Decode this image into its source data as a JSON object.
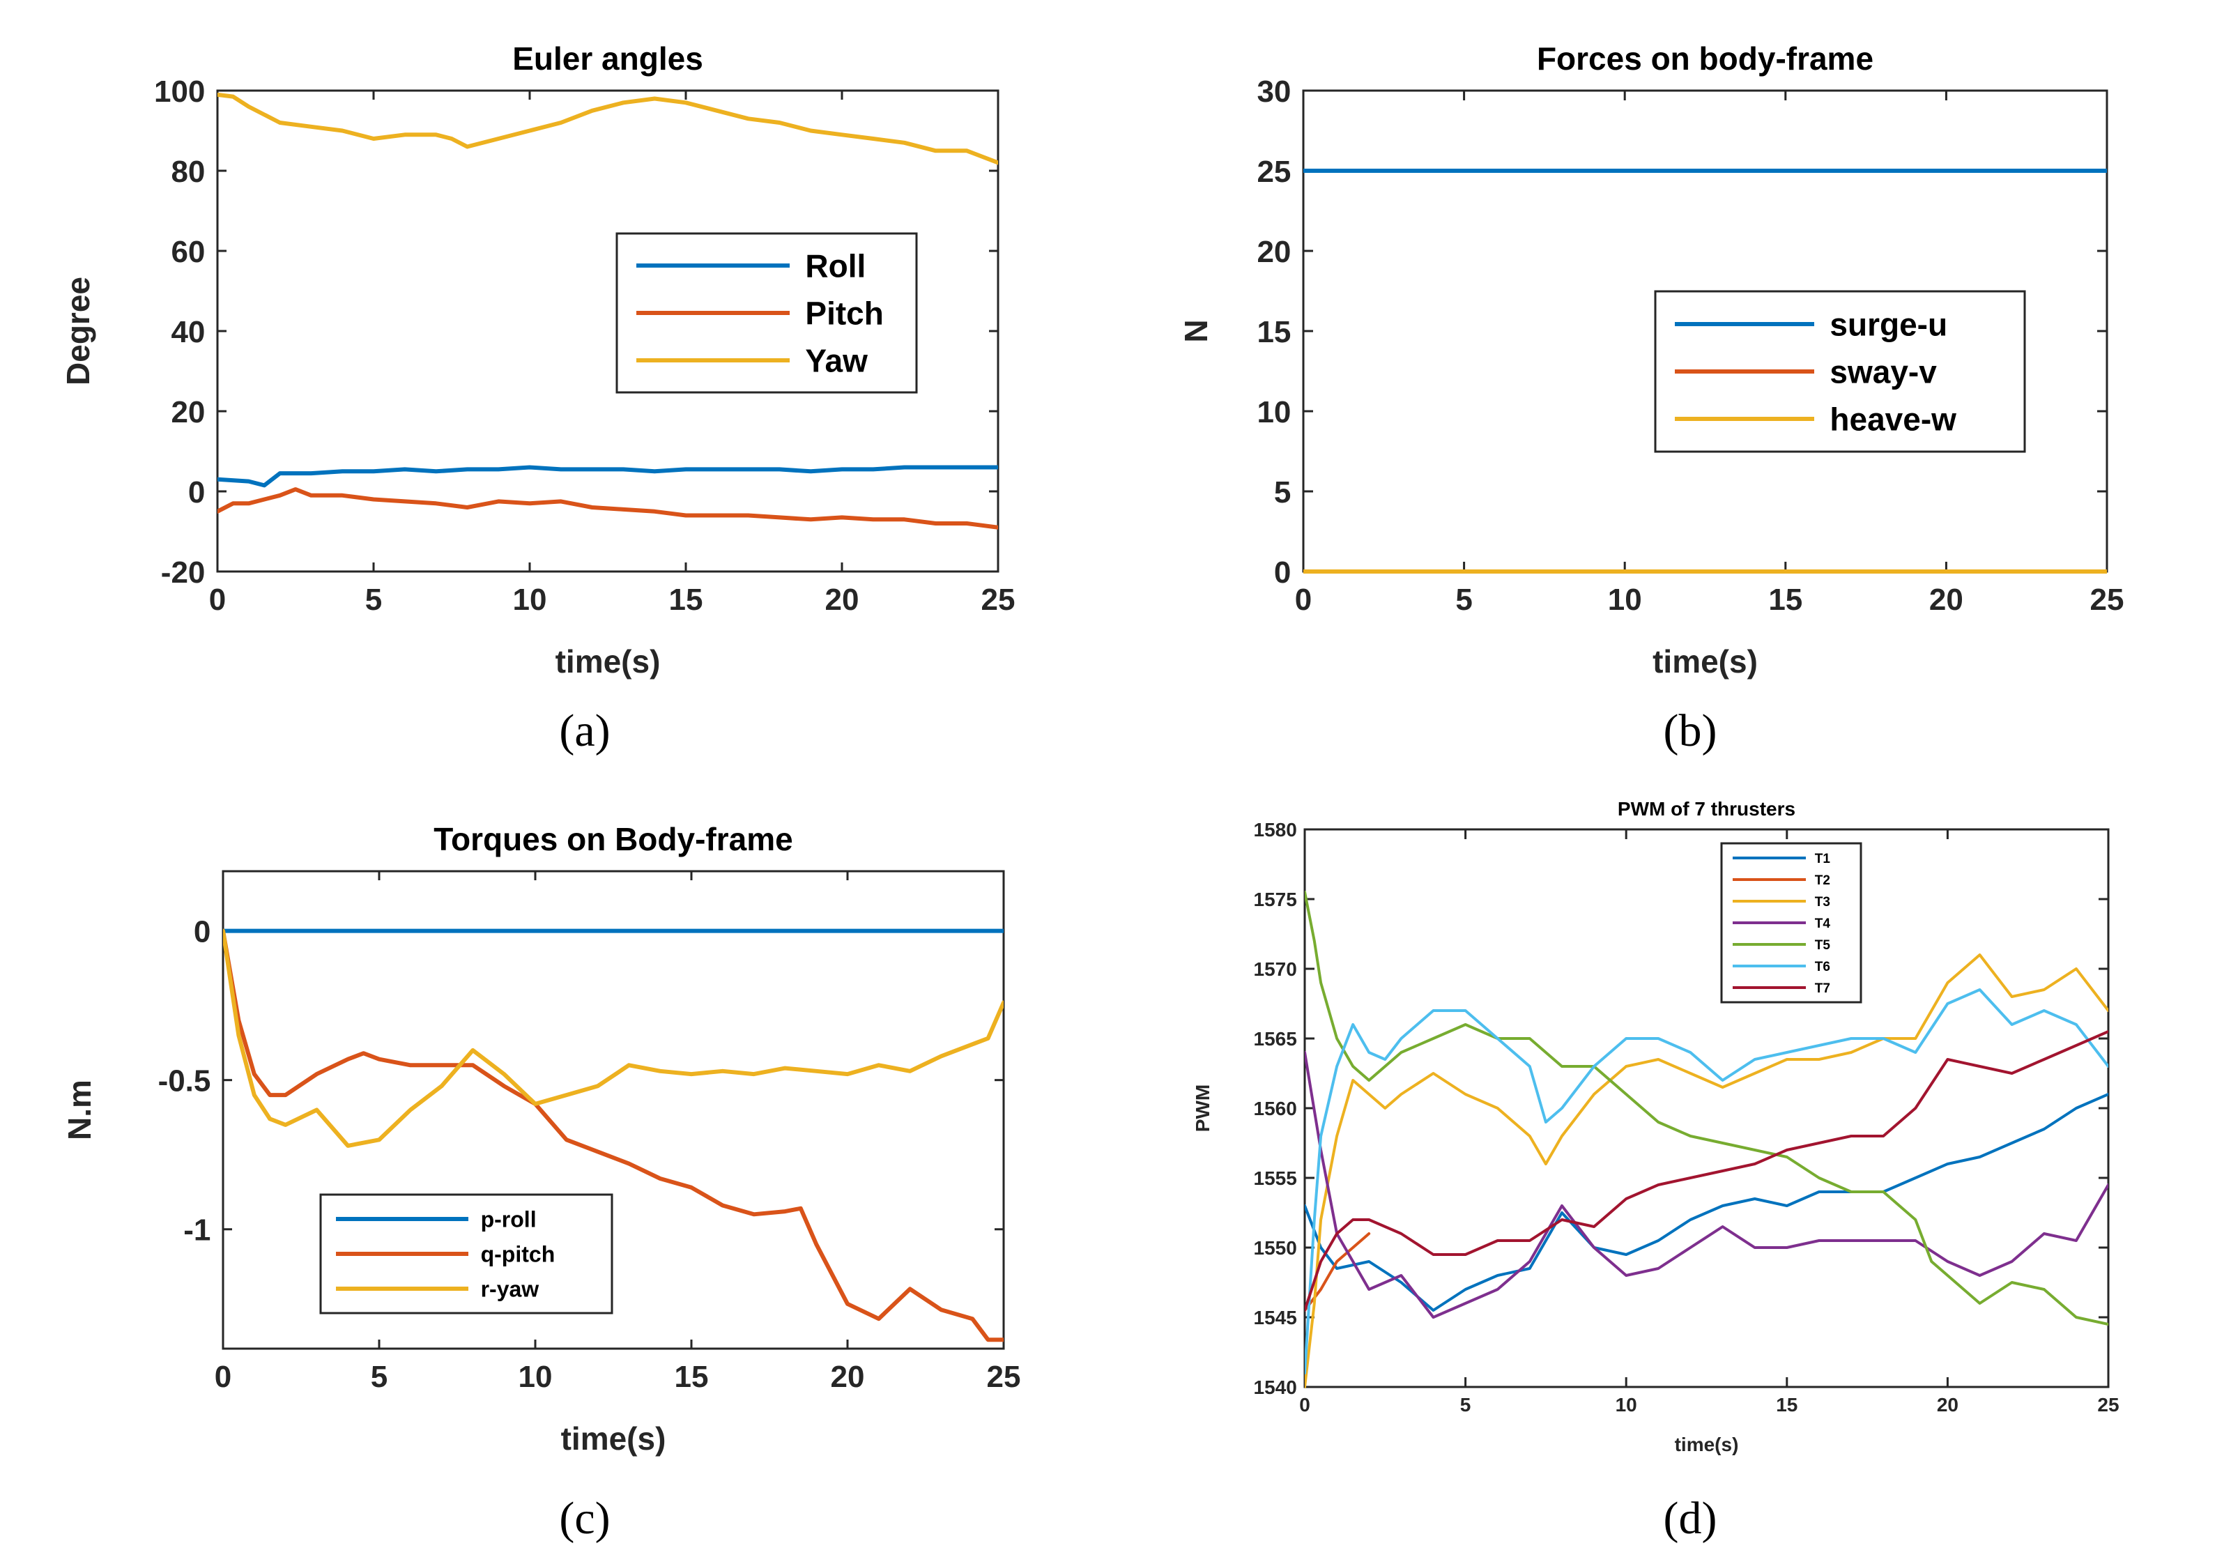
{
  "figure": {
    "captions": [
      "(a)",
      "(b)",
      "(c)",
      "(d)"
    ]
  },
  "chart_data": [
    {
      "id": "a",
      "type": "line",
      "title": "Euler angles",
      "xlabel": "time(s)",
      "ylabel": "Degree",
      "xlim": [
        0,
        25
      ],
      "ylim": [
        -20,
        100
      ],
      "xticks": [
        0,
        5,
        10,
        15,
        20,
        25
      ],
      "xtick_labels": [
        "0",
        "5",
        "10",
        "15",
        "20",
        "25"
      ],
      "yticks": [
        -20,
        0,
        20,
        40,
        60,
        80,
        100
      ],
      "ytick_labels": [
        "-20",
        "0",
        "20",
        "40",
        "60",
        "80",
        "100"
      ],
      "legend_position": "right-middle",
      "series": [
        {
          "name": "Roll",
          "color": "#0072BD",
          "x": [
            0,
            1,
            1.5,
            2,
            3,
            4,
            5,
            6,
            7,
            8,
            9,
            10,
            11,
            12,
            13,
            14,
            15,
            16,
            17,
            18,
            19,
            20,
            21,
            22,
            23,
            24,
            25
          ],
          "y": [
            3,
            2.5,
            1.5,
            4.5,
            4.5,
            5,
            5,
            5.5,
            5,
            5.5,
            5.5,
            6,
            5.5,
            5.5,
            5.5,
            5,
            5.5,
            5.5,
            5.5,
            5.5,
            5,
            5.5,
            5.5,
            6,
            6,
            6,
            6
          ]
        },
        {
          "name": "Pitch",
          "color": "#D95319",
          "x": [
            0,
            0.5,
            1,
            2,
            2.5,
            3,
            4,
            5,
            6,
            7,
            8,
            9,
            10,
            11,
            12,
            13,
            14,
            15,
            16,
            17,
            18,
            19,
            20,
            21,
            22,
            23,
            24,
            25
          ],
          "y": [
            -5,
            -3,
            -3,
            -1,
            0.5,
            -1,
            -1,
            -2,
            -2.5,
            -3,
            -4,
            -2.5,
            -3,
            -2.5,
            -4,
            -4.5,
            -5,
            -6,
            -6,
            -6,
            -6.5,
            -7,
            -6.5,
            -7,
            -7,
            -8,
            -8,
            -9
          ]
        },
        {
          "name": "Yaw",
          "color": "#EDB120",
          "x": [
            0,
            0.5,
            1,
            2,
            3,
            4,
            5,
            6,
            7,
            7.5,
            8,
            9,
            10,
            11,
            12,
            13,
            14,
            15,
            16,
            17,
            18,
            19,
            20,
            21,
            22,
            23,
            24,
            25
          ],
          "y": [
            99,
            98.5,
            96,
            92,
            91,
            90,
            88,
            89,
            89,
            88,
            86,
            88,
            90,
            92,
            95,
            97,
            98,
            97,
            95,
            93,
            92,
            90,
            89,
            88,
            87,
            85,
            85,
            82
          ]
        }
      ]
    },
    {
      "id": "b",
      "type": "line",
      "title": "Forces on body-frame",
      "xlabel": "time(s)",
      "ylabel": "N",
      "xlim": [
        0,
        25
      ],
      "ylim": [
        0,
        30
      ],
      "xticks": [
        0,
        5,
        10,
        15,
        20,
        25
      ],
      "xtick_labels": [
        "0",
        "5",
        "10",
        "15",
        "20",
        "25"
      ],
      "yticks": [
        0,
        5,
        10,
        15,
        20,
        25,
        30
      ],
      "ytick_labels": [
        "0",
        "5",
        "10",
        "15",
        "20",
        "25",
        "30"
      ],
      "legend_position": "right-middle",
      "series": [
        {
          "name": "surge-u",
          "color": "#0072BD",
          "x": [
            0,
            25
          ],
          "y": [
            25,
            25
          ]
        },
        {
          "name": "sway-v",
          "color": "#D95319",
          "x": [
            0,
            25
          ],
          "y": [
            0,
            0
          ]
        },
        {
          "name": "heave-w",
          "color": "#EDB120",
          "x": [
            0,
            25
          ],
          "y": [
            0,
            0
          ]
        }
      ]
    },
    {
      "id": "c",
      "type": "line",
      "title": "Torques on Body-frame",
      "xlabel": "time(s)",
      "ylabel": "N.m",
      "xlim": [
        0,
        25
      ],
      "ylim": [
        -1.4,
        0.2
      ],
      "xticks": [
        0,
        5,
        10,
        15,
        20,
        25
      ],
      "xtick_labels": [
        "0",
        "5",
        "10",
        "15",
        "20",
        "25"
      ],
      "yticks": [
        -1,
        -0.5,
        0
      ],
      "ytick_labels": [
        "-1",
        "-0.5",
        "0"
      ],
      "legend_position": "bottom-left",
      "series": [
        {
          "name": "p-roll",
          "color": "#0072BD",
          "x": [
            0,
            25
          ],
          "y": [
            0,
            0
          ]
        },
        {
          "name": "q-pitch",
          "color": "#D95319",
          "x": [
            0,
            0.5,
            1,
            1.5,
            2,
            3,
            4,
            4.5,
            5,
            6,
            7,
            8,
            9,
            10,
            11,
            12,
            13,
            14,
            15,
            16,
            17,
            18,
            18.5,
            19,
            20,
            21,
            22,
            23,
            24,
            24.5,
            25
          ],
          "y": [
            0,
            -0.3,
            -0.48,
            -0.55,
            -0.55,
            -0.48,
            -0.43,
            -0.41,
            -0.43,
            -0.45,
            -0.45,
            -0.45,
            -0.52,
            -0.58,
            -0.7,
            -0.74,
            -0.78,
            -0.83,
            -0.86,
            -0.92,
            -0.95,
            -0.94,
            -0.93,
            -1.05,
            -1.25,
            -1.3,
            -1.2,
            -1.27,
            -1.3,
            -1.37,
            -1.37
          ]
        },
        {
          "name": "r-yaw",
          "color": "#EDB120",
          "x": [
            0,
            0.5,
            1,
            1.5,
            2,
            3,
            4,
            5,
            6,
            7,
            8,
            9,
            10,
            11,
            12,
            13,
            14,
            15,
            16,
            17,
            18,
            19,
            20,
            21,
            22,
            23,
            24,
            24.5,
            25
          ],
          "y": [
            0,
            -0.35,
            -0.55,
            -0.63,
            -0.65,
            -0.6,
            -0.72,
            -0.7,
            -0.6,
            -0.52,
            -0.4,
            -0.48,
            -0.58,
            -0.55,
            -0.52,
            -0.45,
            -0.47,
            -0.48,
            -0.47,
            -0.48,
            -0.46,
            -0.47,
            -0.48,
            -0.45,
            -0.47,
            -0.42,
            -0.38,
            -0.36,
            -0.24
          ]
        }
      ]
    },
    {
      "id": "d",
      "type": "line",
      "title": "PWM of 7 thrusters",
      "xlabel": "time(s)",
      "ylabel": "PWM",
      "xlim": [
        0,
        25
      ],
      "ylim": [
        1540,
        1580
      ],
      "xticks": [
        0,
        5,
        10,
        15,
        20,
        25
      ],
      "xtick_labels": [
        "0",
        "5",
        "10",
        "15",
        "20",
        "25"
      ],
      "yticks": [
        1540,
        1545,
        1550,
        1555,
        1560,
        1565,
        1570,
        1575,
        1580
      ],
      "ytick_labels": [
        "1540",
        "1545",
        "1550",
        "1555",
        "1560",
        "1565",
        "1570",
        "1575",
        "1580"
      ],
      "legend_position": "top-center",
      "series": [
        {
          "name": "T1",
          "color": "#0072BD",
          "x": [
            0,
            0.5,
            1,
            2,
            3,
            4,
            5,
            6,
            7,
            8,
            9,
            10,
            11,
            12,
            13,
            14,
            15,
            16,
            17,
            18,
            19,
            20,
            21,
            22,
            23,
            24,
            25
          ],
          "y": [
            1553,
            1550,
            1548.5,
            1549,
            1547.5,
            1545.5,
            1547,
            1548,
            1548.5,
            1552.5,
            1550,
            1549.5,
            1550.5,
            1552,
            1553,
            1553.5,
            1553,
            1554,
            1554,
            1554,
            1555,
            1556,
            1556.5,
            1557.5,
            1558.5,
            1560,
            1561
          ]
        },
        {
          "name": "T2",
          "color": "#D95319",
          "x": [
            0,
            0.5,
            1,
            1.5,
            2
          ],
          "y": [
            1545.5,
            1547,
            1549,
            1550,
            1551
          ]
        },
        {
          "name": "T3",
          "color": "#EDB120",
          "x": [
            0,
            0.3,
            0.5,
            1,
            1.5,
            2,
            2.5,
            3,
            4,
            5,
            6,
            7,
            7.5,
            8,
            9,
            10,
            11,
            12,
            13,
            14,
            15,
            16,
            17,
            18,
            19,
            20,
            21,
            22,
            23,
            24,
            25
          ],
          "y": [
            1540,
            1546,
            1552,
            1558,
            1562,
            1561,
            1560,
            1561,
            1562.5,
            1561,
            1560,
            1558,
            1556,
            1558,
            1561,
            1563,
            1563.5,
            1562.5,
            1561.5,
            1562.5,
            1563.5,
            1563.5,
            1564,
            1565,
            1565,
            1569,
            1571,
            1568,
            1568.5,
            1570,
            1567
          ]
        },
        {
          "name": "T4",
          "color": "#7E2F8E",
          "x": [
            0,
            0.5,
            1,
            1.5,
            2,
            3,
            4,
            5,
            6,
            7,
            8,
            9,
            10,
            11,
            12,
            13,
            14,
            15,
            16,
            17,
            18,
            19,
            20,
            21,
            22,
            23,
            24,
            25
          ],
          "y": [
            1564,
            1557,
            1551,
            1549,
            1547,
            1548,
            1545,
            1546,
            1547,
            1549,
            1553,
            1550,
            1548,
            1548.5,
            1550,
            1551.5,
            1550,
            1550,
            1550.5,
            1550.5,
            1550.5,
            1550.5,
            1549,
            1548,
            1549,
            1551,
            1550.5,
            1554.5
          ]
        },
        {
          "name": "T5",
          "color": "#77AC30",
          "x": [
            0,
            0.3,
            0.5,
            1,
            1.5,
            2,
            3,
            4,
            5,
            6,
            7,
            8,
            9,
            10,
            11,
            12,
            13,
            14,
            15,
            16,
            17,
            18,
            19,
            19.5,
            20,
            21,
            22,
            23,
            24,
            25
          ],
          "y": [
            1575.5,
            1572,
            1569,
            1565,
            1563,
            1562,
            1564,
            1565,
            1566,
            1565,
            1565,
            1563,
            1563,
            1561,
            1559,
            1558,
            1557.5,
            1557,
            1556.5,
            1555,
            1554,
            1554,
            1552,
            1549,
            1548,
            1546,
            1547.5,
            1547,
            1545,
            1544.5
          ]
        },
        {
          "name": "T6",
          "color": "#4DBEEE",
          "x": [
            0,
            0.3,
            0.5,
            1,
            1.5,
            2,
            2.5,
            3,
            4,
            5,
            6,
            7,
            7.5,
            8,
            9,
            10,
            11,
            12,
            13,
            14,
            15,
            16,
            17,
            18,
            19,
            20,
            21,
            22,
            23,
            24,
            25
          ],
          "y": [
            1541,
            1552,
            1558,
            1563,
            1566,
            1564,
            1563.5,
            1565,
            1567,
            1567,
            1565,
            1563,
            1559,
            1560,
            1563,
            1565,
            1565,
            1564,
            1562,
            1563.5,
            1564,
            1564.5,
            1565,
            1565,
            1564,
            1567.5,
            1568.5,
            1566,
            1567,
            1566,
            1563
          ]
        },
        {
          "name": "T7",
          "color": "#A2142F",
          "x": [
            0,
            0.5,
            1,
            1.5,
            2,
            3,
            4,
            5,
            6,
            7,
            8,
            9,
            10,
            11,
            12,
            13,
            14,
            15,
            16,
            17,
            18,
            19,
            20,
            21,
            22,
            23,
            24,
            25
          ],
          "y": [
            1545.5,
            1549,
            1551,
            1552,
            1552,
            1551,
            1549.5,
            1549.5,
            1550.5,
            1550.5,
            1552,
            1551.5,
            1553.5,
            1554.5,
            1555,
            1555.5,
            1556,
            1557,
            1557.5,
            1558,
            1558,
            1560,
            1563.5,
            1563,
            1562.5,
            1563.5,
            1564.5,
            1565.5
          ]
        }
      ]
    }
  ]
}
